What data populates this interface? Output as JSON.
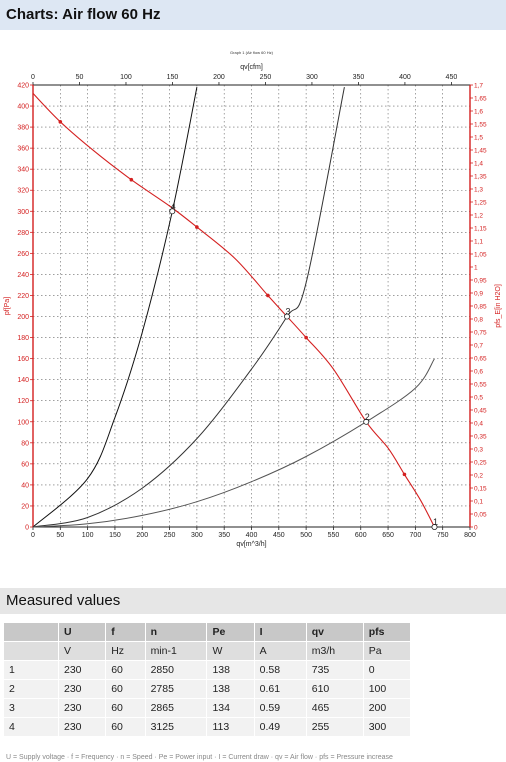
{
  "page_title": "Charts: Air flow 60 Hz",
  "chart_data": {
    "type": "line",
    "title": "Graph 1 (Air flow 60 Hz)",
    "xlabel_bottom": "qv[m^3/h]",
    "xlabel_top": "qv[cfm]",
    "ylabel_left": "pf[Pa]",
    "ylabel_right": "pfs_E[in H2O]",
    "xlim": [
      0,
      800
    ],
    "ylim": [
      0,
      420
    ],
    "top_xlim": [
      0,
      470
    ],
    "right_ylim": [
      0,
      1.7
    ],
    "grid": true,
    "x_ticks": [
      "0",
      "50",
      "100",
      "150",
      "200",
      "250",
      "300",
      "350",
      "400",
      "450",
      "500",
      "550",
      "600",
      "650",
      "700",
      "750",
      "800"
    ],
    "y_ticks": [
      "0",
      "20",
      "40",
      "60",
      "80",
      "100",
      "120",
      "140",
      "160",
      "180",
      "200",
      "220",
      "240",
      "260",
      "280",
      "300",
      "320",
      "340",
      "360",
      "380",
      "400",
      "420"
    ],
    "top_ticks": [
      "0",
      "50",
      "100",
      "150",
      "200",
      "250",
      "300",
      "350",
      "400",
      "450"
    ],
    "right_ticks": [
      "0",
      "0,05",
      "0,1",
      "0,15",
      "0,2",
      "0,25",
      "0,3",
      "0,35",
      "0,4",
      "0,45",
      "0,5",
      "0,55",
      "0,6",
      "0,65",
      "0,7",
      "0,75",
      "0,8",
      "0,85",
      "0,9",
      "0,95",
      "1",
      "1,05",
      "1,1",
      "1,15",
      "1,2",
      "1,25",
      "1,3",
      "1,35",
      "1,4",
      "1,45",
      "1,5",
      "1,55",
      "1,6",
      "1,65",
      "1,7"
    ],
    "series": [
      {
        "color": "#d42020",
        "x": [
          0,
          50,
          110,
          180,
          250,
          300,
          370,
          430,
          465,
          500,
          550,
          610,
          650,
          680,
          710,
          735
        ],
        "y": [
          412,
          385,
          358,
          330,
          305,
          285,
          255,
          220,
          200,
          180,
          150,
          100,
          75,
          50,
          25,
          0
        ]
      },
      {
        "color": "#111111",
        "x": [
          0,
          100,
          150,
          200,
          255,
          300
        ],
        "y": [
          0,
          46,
          104,
          185,
          300,
          418
        ]
      },
      {
        "color": "#333333",
        "x": [
          0,
          100,
          200,
          300,
          400,
          465,
          500,
          570
        ],
        "y": [
          0,
          9,
          37,
          84,
          150,
          200,
          232,
          418
        ]
      },
      {
        "color": "#555555",
        "x": [
          0,
          100,
          200,
          300,
          400,
          500,
          610,
          700,
          735
        ],
        "y": [
          0,
          3,
          11,
          24,
          43,
          67,
          100,
          132,
          160
        ]
      }
    ],
    "operating_points": [
      {
        "label": "1",
        "x": 735,
        "y": 0
      },
      {
        "label": "2",
        "x": 610,
        "y": 100
      },
      {
        "label": "3",
        "x": 465,
        "y": 200
      },
      {
        "label": "4",
        "x": 255,
        "y": 300
      }
    ]
  },
  "measured": {
    "title": "Measured values",
    "headers": [
      "",
      "U",
      "f",
      "n",
      "Pe",
      "I",
      "qv",
      "pfs"
    ],
    "units": [
      "",
      "V",
      "Hz",
      "min-1",
      "W",
      "A",
      "m3/h",
      "Pa"
    ],
    "rows": [
      [
        "1",
        "230",
        "60",
        "2850",
        "138",
        "0.58",
        "735",
        "0"
      ],
      [
        "2",
        "230",
        "60",
        "2785",
        "138",
        "0.61",
        "610",
        "100"
      ],
      [
        "3",
        "230",
        "60",
        "2865",
        "134",
        "0.59",
        "465",
        "200"
      ],
      [
        "4",
        "230",
        "60",
        "3125",
        "113",
        "0.49",
        "255",
        "300"
      ]
    ]
  },
  "footnote": "U = Supply voltage · f = Frequency · n = Speed · Pe = Power input · I = Current draw · qv = Air flow · pfs = Pressure increase"
}
